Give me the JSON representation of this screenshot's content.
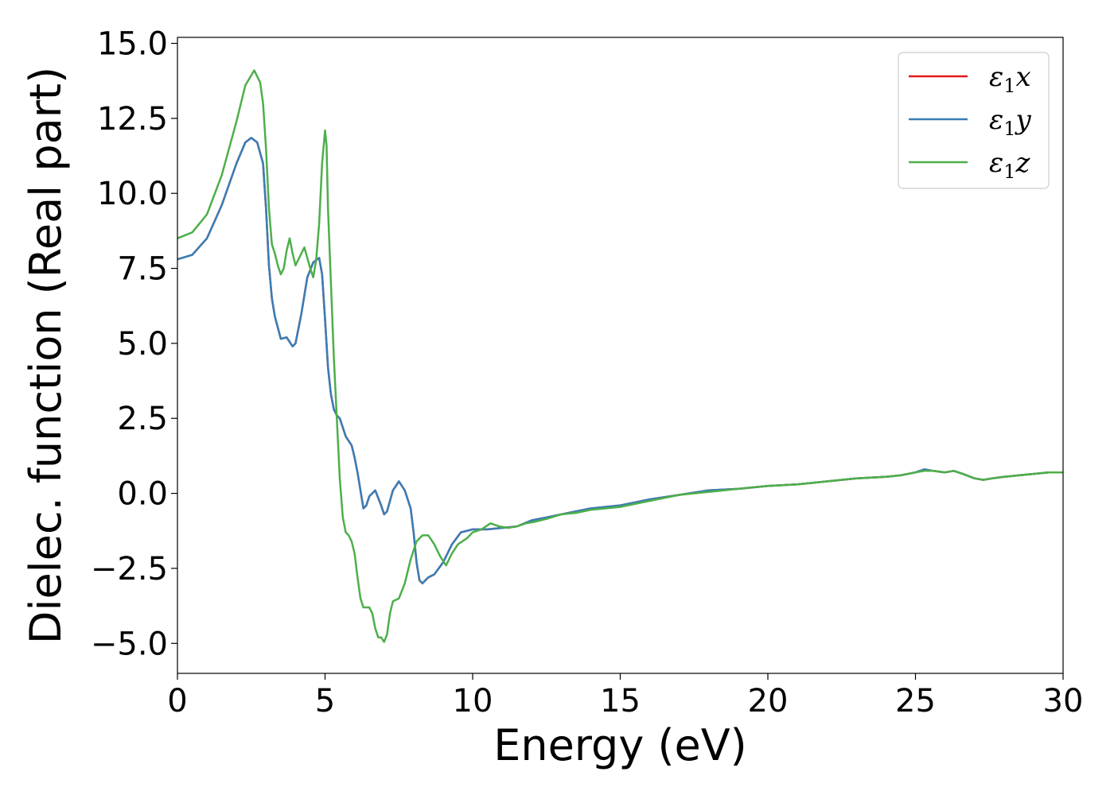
{
  "chart_data": {
    "type": "line",
    "xlabel": "Energy (eV)",
    "ylabel": "Dielec. function (Real part)",
    "xlim": [
      0,
      30
    ],
    "ylim": [
      -6.0,
      15.2
    ],
    "xticks": [
      0,
      5,
      10,
      15,
      20,
      25,
      30
    ],
    "xtick_labels": [
      "0",
      "5",
      "10",
      "15",
      "20",
      "25",
      "30"
    ],
    "yticks": [
      -5.0,
      -2.5,
      0.0,
      2.5,
      5.0,
      7.5,
      10.0,
      12.5,
      15.0
    ],
    "ytick_labels": [
      "−5.0",
      "−2.5",
      "0.0",
      "2.5",
      "5.0",
      "7.5",
      "10.0",
      "12.5",
      "15.0"
    ],
    "grid": false,
    "legend_position": "top-right",
    "series": [
      {
        "name_symbol": "ε",
        "name_sub": "1",
        "name_suffix": "x",
        "color": "#e41a1c",
        "x": [
          0,
          0.5,
          1.0,
          1.5,
          2.0,
          2.3,
          2.5,
          2.7,
          2.9,
          3.0,
          3.1,
          3.2,
          3.3,
          3.5,
          3.7,
          3.9,
          4.0,
          4.2,
          4.4,
          4.6,
          4.8,
          4.9,
          5.0,
          5.1,
          5.2,
          5.3,
          5.4,
          5.5,
          5.7,
          5.9,
          6.0,
          6.1,
          6.2,
          6.3,
          6.4,
          6.5,
          6.7,
          6.9,
          7.0,
          7.1,
          7.3,
          7.5,
          7.7,
          7.9,
          8.0,
          8.1,
          8.2,
          8.3,
          8.5,
          8.7,
          9.0,
          9.3,
          9.6,
          10.0,
          10.5,
          11.0,
          11.5,
          12.0,
          12.5,
          13.0,
          13.5,
          14.0,
          14.5,
          15.0,
          16.0,
          17.0,
          18.0,
          19.0,
          20.0,
          21.0,
          22.0,
          23.0,
          24.0,
          24.5,
          25.0,
          25.3,
          25.6,
          26.0,
          26.3,
          26.6,
          27.0,
          27.3,
          27.6,
          28.0,
          28.5,
          29.0,
          29.5,
          30.0
        ],
        "y": [
          7.8,
          7.95,
          8.5,
          9.6,
          11.0,
          11.7,
          11.85,
          11.7,
          11.0,
          9.5,
          7.6,
          6.5,
          5.9,
          5.15,
          5.2,
          4.9,
          5.0,
          6.0,
          7.2,
          7.7,
          7.85,
          7.3,
          5.8,
          4.2,
          3.3,
          2.8,
          2.6,
          2.5,
          1.9,
          1.6,
          1.2,
          0.7,
          0.1,
          -0.5,
          -0.4,
          -0.1,
          0.1,
          -0.4,
          -0.7,
          -0.6,
          0.1,
          0.4,
          0.1,
          -0.5,
          -1.3,
          -2.3,
          -2.9,
          -3.0,
          -2.8,
          -2.7,
          -2.3,
          -1.7,
          -1.3,
          -1.2,
          -1.2,
          -1.15,
          -1.1,
          -0.9,
          -0.8,
          -0.7,
          -0.6,
          -0.5,
          -0.45,
          -0.4,
          -0.2,
          -0.05,
          0.1,
          0.15,
          0.25,
          0.3,
          0.4,
          0.5,
          0.55,
          0.6,
          0.7,
          0.8,
          0.75,
          0.7,
          0.75,
          0.65,
          0.5,
          0.45,
          0.5,
          0.55,
          0.6,
          0.65,
          0.7,
          0.7
        ]
      },
      {
        "name_symbol": "ε",
        "name_sub": "1",
        "name_suffix": "y",
        "color": "#377eb8",
        "x": [
          0,
          0.5,
          1.0,
          1.5,
          2.0,
          2.3,
          2.5,
          2.7,
          2.9,
          3.0,
          3.1,
          3.2,
          3.3,
          3.5,
          3.7,
          3.9,
          4.0,
          4.2,
          4.4,
          4.6,
          4.8,
          4.9,
          5.0,
          5.1,
          5.2,
          5.3,
          5.4,
          5.5,
          5.7,
          5.9,
          6.0,
          6.1,
          6.2,
          6.3,
          6.4,
          6.5,
          6.7,
          6.9,
          7.0,
          7.1,
          7.3,
          7.5,
          7.7,
          7.9,
          8.0,
          8.1,
          8.2,
          8.3,
          8.5,
          8.7,
          9.0,
          9.3,
          9.6,
          10.0,
          10.5,
          11.0,
          11.5,
          12.0,
          12.5,
          13.0,
          13.5,
          14.0,
          14.5,
          15.0,
          16.0,
          17.0,
          18.0,
          19.0,
          20.0,
          21.0,
          22.0,
          23.0,
          24.0,
          24.5,
          25.0,
          25.3,
          25.6,
          26.0,
          26.3,
          26.6,
          27.0,
          27.3,
          27.6,
          28.0,
          28.5,
          29.0,
          29.5,
          30.0
        ],
        "y": [
          7.8,
          7.95,
          8.5,
          9.6,
          11.0,
          11.7,
          11.85,
          11.7,
          11.0,
          9.5,
          7.6,
          6.5,
          5.9,
          5.15,
          5.2,
          4.9,
          5.0,
          6.0,
          7.2,
          7.7,
          7.85,
          7.3,
          5.8,
          4.2,
          3.3,
          2.8,
          2.6,
          2.5,
          1.9,
          1.6,
          1.2,
          0.7,
          0.1,
          -0.5,
          -0.4,
          -0.1,
          0.1,
          -0.4,
          -0.7,
          -0.6,
          0.1,
          0.4,
          0.1,
          -0.5,
          -1.3,
          -2.3,
          -2.9,
          -3.0,
          -2.8,
          -2.7,
          -2.3,
          -1.7,
          -1.3,
          -1.2,
          -1.2,
          -1.15,
          -1.1,
          -0.9,
          -0.8,
          -0.7,
          -0.6,
          -0.5,
          -0.45,
          -0.4,
          -0.2,
          -0.05,
          0.1,
          0.15,
          0.25,
          0.3,
          0.4,
          0.5,
          0.55,
          0.6,
          0.7,
          0.8,
          0.75,
          0.7,
          0.75,
          0.65,
          0.5,
          0.45,
          0.5,
          0.55,
          0.6,
          0.65,
          0.7,
          0.7
        ]
      },
      {
        "name_symbol": "ε",
        "name_sub": "1",
        "name_suffix": "z",
        "color": "#4daf4a",
        "x": [
          0,
          0.5,
          1.0,
          1.5,
          2.0,
          2.3,
          2.6,
          2.8,
          2.9,
          3.0,
          3.1,
          3.2,
          3.3,
          3.4,
          3.5,
          3.6,
          3.7,
          3.8,
          3.9,
          4.0,
          4.1,
          4.3,
          4.5,
          4.6,
          4.7,
          4.8,
          4.9,
          5.0,
          5.05,
          5.1,
          5.2,
          5.3,
          5.4,
          5.5,
          5.6,
          5.7,
          5.8,
          5.9,
          6.0,
          6.1,
          6.2,
          6.3,
          6.4,
          6.5,
          6.6,
          6.7,
          6.8,
          6.9,
          7.0,
          7.1,
          7.2,
          7.3,
          7.5,
          7.7,
          7.9,
          8.1,
          8.3,
          8.5,
          8.7,
          8.9,
          9.1,
          9.3,
          9.5,
          9.8,
          10.0,
          10.3,
          10.6,
          10.9,
          11.2,
          11.5,
          11.8,
          12.1,
          12.5,
          13.0,
          13.5,
          14.0,
          14.5,
          15.0,
          16.0,
          17.0,
          18.0,
          19.0,
          20.0,
          21.0,
          22.0,
          23.0,
          24.0,
          24.5,
          25.0,
          25.3,
          25.6,
          26.0,
          26.3,
          26.6,
          27.0,
          27.3,
          27.6,
          28.0,
          28.5,
          29.0,
          29.5,
          30.0
        ],
        "y": [
          8.5,
          8.7,
          9.3,
          10.6,
          12.4,
          13.6,
          14.1,
          13.7,
          13.0,
          11.5,
          9.5,
          8.3,
          8.0,
          7.6,
          7.3,
          7.5,
          8.1,
          8.5,
          8.0,
          7.6,
          7.8,
          8.2,
          7.5,
          7.2,
          7.8,
          9.0,
          11.0,
          12.1,
          11.6,
          9.5,
          7.0,
          4.5,
          2.5,
          0.5,
          -0.8,
          -1.3,
          -1.4,
          -1.6,
          -2.0,
          -2.8,
          -3.5,
          -3.8,
          -3.8,
          -3.8,
          -4.0,
          -4.5,
          -4.8,
          -4.8,
          -4.95,
          -4.7,
          -4.0,
          -3.6,
          -3.5,
          -3.0,
          -2.2,
          -1.6,
          -1.4,
          -1.4,
          -1.7,
          -2.1,
          -2.4,
          -2.0,
          -1.7,
          -1.5,
          -1.3,
          -1.2,
          -1.0,
          -1.1,
          -1.15,
          -1.1,
          -1.0,
          -0.95,
          -0.85,
          -0.7,
          -0.65,
          -0.55,
          -0.5,
          -0.45,
          -0.25,
          -0.05,
          0.05,
          0.15,
          0.25,
          0.3,
          0.4,
          0.5,
          0.55,
          0.6,
          0.7,
          0.75,
          0.75,
          0.7,
          0.75,
          0.65,
          0.5,
          0.45,
          0.5,
          0.55,
          0.6,
          0.65,
          0.7,
          0.7
        ]
      }
    ]
  }
}
